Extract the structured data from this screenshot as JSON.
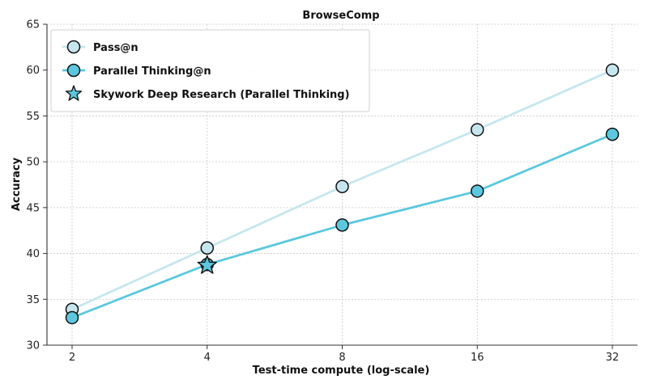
{
  "chart_data": {
    "type": "line",
    "title": "BrowseComp",
    "xlabel": "Test-time compute (log-scale)",
    "ylabel": "Accuracy",
    "x_scale": "log2",
    "x": [
      2,
      4,
      8,
      16,
      32
    ],
    "x_tick_labels": [
      "2",
      "4",
      "8",
      "16",
      "32"
    ],
    "ylim": [
      30,
      65
    ],
    "y_ticks": [
      30,
      35,
      40,
      45,
      50,
      55,
      60,
      65
    ],
    "y_tick_labels": [
      "30",
      "35",
      "40",
      "45",
      "50",
      "55",
      "60",
      "65"
    ],
    "grid": true,
    "legend_position": "top-left",
    "series": [
      {
        "name": "Pass@n",
        "values": [
          33.9,
          40.6,
          47.3,
          53.5,
          60.0
        ],
        "color": "#c6e6ef",
        "marker": "circle"
      },
      {
        "name": "Parallel Thinking@n",
        "values": [
          33.0,
          38.8,
          43.1,
          46.8,
          53.0
        ],
        "color": "#5bc8de",
        "marker": "circle"
      }
    ],
    "highlight": {
      "name": "Skywork Deep Research (Parallel Thinking)",
      "x": 4,
      "y": 38.7,
      "color": "#5bc8de",
      "marker": "star"
    }
  }
}
